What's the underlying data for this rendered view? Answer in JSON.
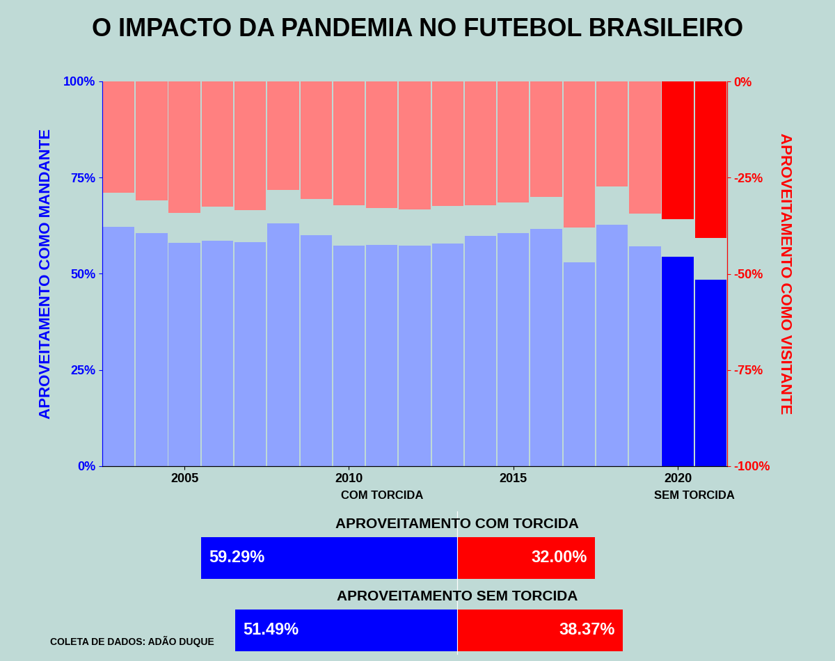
{
  "chart_data": [
    {
      "type": "bar",
      "title": "O IMPACTO DA PANDEMIA NO FUTEBOL BRASILEIRO",
      "x": [
        2003,
        2004,
        2005,
        2006,
        2007,
        2008,
        2009,
        2010,
        2011,
        2012,
        2013,
        2014,
        2015,
        2016,
        2017,
        2018,
        2019,
        2020,
        2021
      ],
      "xlim": [
        2002.5,
        2021.5
      ],
      "xticks": [
        2005,
        2010,
        2015,
        2020
      ],
      "ylabel": "APROVEITAMENTO COMO MANDANTE",
      "y2label": "APROVEITAMENTO COMO VISITANTE",
      "ylim": [
        0,
        100
      ],
      "yticks": [
        {
          "value": 0,
          "label": "0%"
        },
        {
          "value": 25,
          "label": "25%"
        },
        {
          "value": 50,
          "label": "50%"
        },
        {
          "value": 75,
          "label": "75%"
        },
        {
          "value": 100,
          "label": "100%"
        }
      ],
      "y2lim": [
        -100,
        0
      ],
      "y2ticks": [
        {
          "value": -100,
          "label": "-100%"
        },
        {
          "value": -75,
          "label": "-75%"
        },
        {
          "value": -50,
          "label": "-50%"
        },
        {
          "value": -25,
          "label": "-25%"
        },
        {
          "value": 0,
          "label": "0%"
        }
      ],
      "series": [
        {
          "colors": [
            "#8fa3ff",
            "#8fa3ff",
            "#8fa3ff",
            "#8fa3ff",
            "#8fa3ff",
            "#8fa3ff",
            "#8fa3ff",
            "#8fa3ff",
            "#8fa3ff",
            "#8fa3ff",
            "#8fa3ff",
            "#8fa3ff",
            "#8fa3ff",
            "#8fa3ff",
            "#8fa3ff",
            "#8fa3ff",
            "#8fa3ff",
            "#0000ff",
            "#0000ff"
          ],
          "values": [
            62.2,
            60.6,
            58.0,
            58.6,
            58.2,
            63.1,
            60.0,
            57.3,
            57.5,
            57.3,
            57.9,
            59.9,
            60.6,
            61.7,
            53.0,
            62.7,
            57.1,
            54.4,
            48.5
          ]
        },
        {
          "axis": "y2",
          "colors": [
            "#ff8080",
            "#ff8080",
            "#ff8080",
            "#ff8080",
            "#ff8080",
            "#ff8080",
            "#ff8080",
            "#ff8080",
            "#ff8080",
            "#ff8080",
            "#ff8080",
            "#ff8080",
            "#ff8080",
            "#ff8080",
            "#ff8080",
            "#ff8080",
            "#ff8080",
            "#ff0000",
            "#ff0000"
          ],
          "values": [
            -28.9,
            -30.9,
            -34.2,
            -32.5,
            -33.5,
            -28.2,
            -30.6,
            -32.2,
            -32.9,
            -33.3,
            -32.4,
            -32.2,
            -31.5,
            -30.0,
            -38.0,
            -27.3,
            -34.4,
            -35.8,
            -40.7
          ]
        }
      ],
      "annotations": [
        "COM TORCIDA",
        "SEM TORCIDA"
      ],
      "source": "COLETA DE DADOS: ADÃO DUQUE"
    },
    {
      "type": "bar",
      "orientation": "horizontal",
      "data_labels": true,
      "tick_labels": false,
      "categories": [
        "APROVEITAMENTO COM TORCIDA",
        "APROVEITAMENTO SEM TORCIDA"
      ],
      "xlim": [
        0,
        65
      ],
      "series": [
        {
          "color": "#0000ff",
          "values": [
            59.29,
            51.49
          ],
          "value_labels": [
            "59.29%",
            "51.49%"
          ]
        },
        {
          "color": "#ff0000",
          "values": [
            32.0,
            38.37
          ],
          "value_labels": [
            "32.00%",
            "38.37%"
          ]
        }
      ]
    }
  ]
}
